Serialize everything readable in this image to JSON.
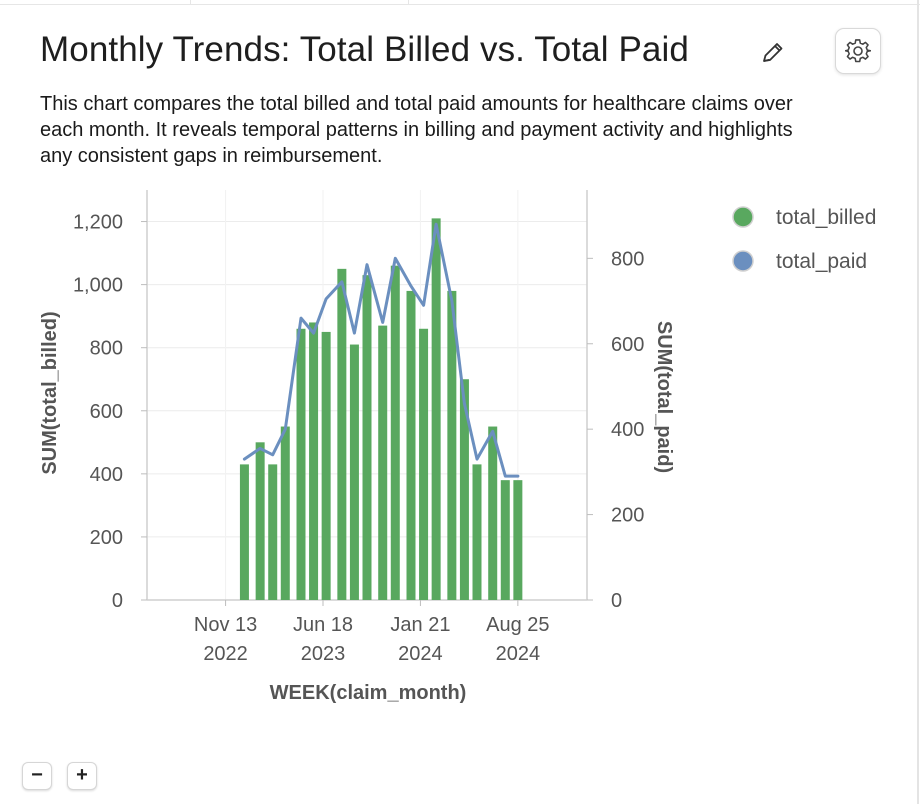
{
  "header": {
    "title": "Monthly Trends: Total Billed vs. Total Paid",
    "description": "This chart compares the total billed and total paid amounts for healthcare claims over each month. It reveals temporal patterns in billing and payment activity and highlights any consistent gaps in reimbursement."
  },
  "icons": {
    "edit": "pencil-icon",
    "settings": "gear-icon"
  },
  "zoom": {
    "out_label": "−",
    "in_label": "+"
  },
  "chart_data": {
    "type": "bar+line",
    "xlabel": "WEEK(claim_month)",
    "ylabel_left": "SUM(total_billed)",
    "ylabel_right": "SUM(total_paid)",
    "ylim_left": [
      0,
      1300
    ],
    "ylim_right": [
      0,
      960
    ],
    "yticks_left": [
      0,
      200,
      400,
      600,
      800,
      1000,
      1200
    ],
    "yticks_left_labels": [
      "0",
      "200",
      "400",
      "600",
      "800",
      "1,000",
      "1,200"
    ],
    "yticks_right": [
      0,
      200,
      400,
      600,
      800
    ],
    "yticks_right_labels": [
      "0",
      "200",
      "400",
      "600",
      "800"
    ],
    "xlim": [
      "2022-05-22",
      "2025-01-26"
    ],
    "xticks": [
      {
        "date": "2022-11-13",
        "line1": "Nov 13",
        "line2": "2022"
      },
      {
        "date": "2023-06-18",
        "line1": "Jun 18",
        "line2": "2023"
      },
      {
        "date": "2024-01-21",
        "line1": "Jan 21",
        "line2": "2024"
      },
      {
        "date": "2024-08-25",
        "line1": "Aug 25",
        "line2": "2024"
      }
    ],
    "x": [
      "2022-12-25",
      "2023-01-29",
      "2023-02-26",
      "2023-03-26",
      "2023-04-30",
      "2023-05-28",
      "2023-06-25",
      "2023-07-30",
      "2023-08-27",
      "2023-09-24",
      "2023-10-29",
      "2023-11-26",
      "2023-12-31",
      "2024-01-28",
      "2024-02-25",
      "2024-03-31",
      "2024-04-28",
      "2024-05-26",
      "2024-06-30",
      "2024-07-28",
      "2024-08-25"
    ],
    "series": [
      {
        "name": "total_billed",
        "type": "bar",
        "axis": "left",
        "color": "#59a85f",
        "values": [
          430,
          500,
          430,
          550,
          860,
          880,
          850,
          1050,
          810,
          1030,
          870,
          1060,
          980,
          860,
          1210,
          980,
          700,
          430,
          550,
          380,
          380
        ]
      },
      {
        "name": "total_paid",
        "type": "line",
        "axis": "right",
        "color": "#6b8fbf",
        "values": [
          330,
          355,
          340,
          400,
          660,
          625,
          705,
          745,
          625,
          785,
          650,
          800,
          735,
          690,
          880,
          700,
          460,
          330,
          395,
          290,
          290
        ]
      }
    ],
    "legend": [
      {
        "name": "total_billed",
        "color": "#59a85f"
      },
      {
        "name": "total_paid",
        "color": "#6b8fbf"
      }
    ],
    "legend_position": "right",
    "grid": true
  }
}
